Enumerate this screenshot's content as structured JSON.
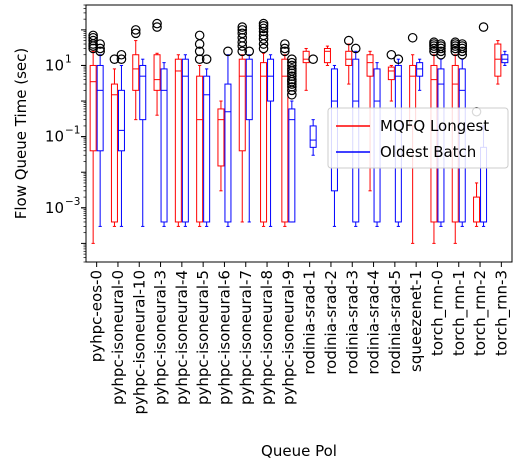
{
  "chart_data": {
    "type": "box",
    "title": "",
    "xlabel": "Queue Pol",
    "ylabel": "Flow Queue Time (sec)",
    "yscale": "log",
    "ylim": [
      3e-05,
      500
    ],
    "yticks": [
      {
        "value": 0.001,
        "base": "10",
        "exp": "−3"
      },
      {
        "value": 0.1,
        "base": "10",
        "exp": "−1"
      },
      {
        "value": 10,
        "base": "10",
        "exp": "1"
      }
    ],
    "grid": false,
    "legend_position": "center-right",
    "categories": [
      "pyhpc-eos-0",
      "pyhpc-isoneural-0",
      "pyhpc-isoneural-10",
      "pyhpc-isoneural-3",
      "pyhpc-isoneural-4",
      "pyhpc-isoneural-5",
      "pyhpc-isoneural-6",
      "pyhpc-isoneural-7",
      "pyhpc-isoneural-8",
      "pyhpc-isoneural-9",
      "rodinia-srad-1",
      "rodinia-srad-2",
      "rodinia-srad-3",
      "rodinia-srad-4",
      "rodinia-srad-5",
      "squeezenet-1",
      "torch_rnn-0",
      "torch_rnn-1",
      "torch_rnn-2",
      "torch_rnn-3"
    ],
    "series": [
      {
        "name": "MQFQ Longest",
        "color": "#ff0000",
        "boxes": [
          {
            "whislo": 0.0001,
            "q1": 0.04,
            "med": 3.5,
            "q3": 10,
            "whishi": 25,
            "fliers": [
              30,
              35,
              40,
              50,
              60,
              70
            ]
          },
          {
            "whislo": 0.0003,
            "q1": 0.0004,
            "med": 1.5,
            "q3": 3,
            "whishi": 8,
            "fliers": [
              15
            ]
          },
          {
            "whislo": 0.3,
            "q1": 2,
            "med": 8,
            "q3": 20,
            "whishi": 50,
            "fliers": [
              80,
              100
            ]
          },
          {
            "whislo": 0.4,
            "q1": 2,
            "med": 4,
            "q3": 20,
            "whishi": 22,
            "fliers": [
              120,
              150
            ]
          },
          {
            "whislo": 0.0003,
            "q1": 0.0004,
            "med": 7,
            "q3": 15,
            "whishi": 20,
            "fliers": []
          },
          {
            "whislo": 0.0003,
            "q1": 0.0004,
            "med": 0.3,
            "q3": 5,
            "whishi": 10,
            "fliers": [
              15,
              25,
              40,
              70
            ]
          },
          {
            "whislo": 0.003,
            "q1": 0.015,
            "med": 0.3,
            "q3": 0.6,
            "whishi": 1,
            "fliers": []
          },
          {
            "whislo": 0.0004,
            "q1": 0.04,
            "med": 5,
            "q3": 15,
            "whishi": 20,
            "fliers": [
              25,
              35,
              45,
              60,
              80,
              100,
              120
            ]
          },
          {
            "whislo": 0.0003,
            "q1": 0.0004,
            "med": 5,
            "q3": 12,
            "whishi": 22,
            "fliers": [
              30,
              40,
              55,
              70,
              90,
              110,
              130,
              150
            ]
          },
          {
            "whislo": 0.0003,
            "q1": 0.0004,
            "med": 5,
            "q3": 15,
            "whishi": 20,
            "fliers": [
              25,
              30,
              40
            ]
          },
          {
            "whislo": 2,
            "q1": 12,
            "med": 15,
            "q3": 25,
            "whishi": 30,
            "fliers": []
          },
          {
            "whislo": 10,
            "q1": 12,
            "med": 25,
            "q3": 30,
            "whishi": 35,
            "fliers": []
          },
          {
            "whislo": 3,
            "q1": 10,
            "med": 15,
            "q3": 25,
            "whishi": 40,
            "fliers": [
              50
            ]
          },
          {
            "whislo": 0.003,
            "q1": 5,
            "med": 12,
            "q3": 20,
            "whishi": 25,
            "fliers": []
          },
          {
            "whislo": 1,
            "q1": 4,
            "med": 7,
            "q3": 9,
            "whishi": 10,
            "fliers": [
              20
            ]
          },
          {
            "whislo": 0.0001,
            "q1": 0.2,
            "med": 5,
            "q3": 10,
            "whishi": 20,
            "fliers": [
              60
            ]
          },
          {
            "whislo": 0.0001,
            "q1": 0.0004,
            "med": 4,
            "q3": 10,
            "whishi": 20,
            "fliers": [
              25,
              30,
              35,
              40,
              45
            ]
          },
          {
            "whislo": 0.0001,
            "q1": 0.0004,
            "med": 3,
            "q3": 10,
            "whishi": 20,
            "fliers": [
              25,
              30,
              35,
              40,
              45
            ]
          },
          {
            "whislo": 0.0003,
            "q1": 0.0004,
            "med": 0.0004,
            "q3": 0.002,
            "whishi": 0.005,
            "fliers": [
              0.5
            ]
          },
          {
            "whislo": 3,
            "q1": 5,
            "med": 15,
            "q3": 40,
            "whishi": 50,
            "fliers": []
          }
        ]
      },
      {
        "name": "Oldest Batch",
        "color": "#0000ff",
        "boxes": [
          {
            "whislo": 0.0003,
            "q1": 0.04,
            "med": 2,
            "q3": 10,
            "whishi": 20,
            "fliers": [
              25,
              30,
              40
            ]
          },
          {
            "whislo": 0.0003,
            "q1": 0.04,
            "med": 0.15,
            "q3": 2,
            "whishi": 10,
            "fliers": [
              15,
              20
            ]
          },
          {
            "whislo": 0.0003,
            "q1": 0.3,
            "med": 5,
            "q3": 10,
            "whishi": 15,
            "fliers": []
          },
          {
            "whislo": 0.0003,
            "q1": 0.0004,
            "med": 2,
            "q3": 8,
            "whishi": 12,
            "fliers": []
          },
          {
            "whislo": 0.0003,
            "q1": 0.0004,
            "med": 5,
            "q3": 15,
            "whishi": 20,
            "fliers": []
          },
          {
            "whislo": 0.0003,
            "q1": 0.0004,
            "med": 1.5,
            "q3": 5,
            "whishi": 8,
            "fliers": [
              15
            ]
          },
          {
            "whislo": 0.0003,
            "q1": 0.0004,
            "med": 0.5,
            "q3": 3,
            "whishi": 20,
            "fliers": [
              25
            ]
          },
          {
            "whislo": 0.0004,
            "q1": 0.3,
            "med": 5,
            "q3": 15,
            "whishi": 20,
            "fliers": [
              25
            ]
          },
          {
            "whislo": 0.0003,
            "q1": 1,
            "med": 5,
            "q3": 15,
            "whishi": 20,
            "fliers": []
          },
          {
            "whislo": 0.0004,
            "q1": 0.0004,
            "med": 0.3,
            "q3": 0.6,
            "whishi": 1,
            "fliers": [
              1.5,
              2,
              2.5,
              3,
              3.5,
              4,
              5,
              6,
              7,
              8,
              10,
              12,
              15
            ]
          },
          {
            "whislo": 0.03,
            "q1": 0.05,
            "med": 0.08,
            "q3": 0.2,
            "whishi": 0.3,
            "fliers": [
              15
            ]
          },
          {
            "whislo": 0.0003,
            "q1": 0.003,
            "med": 1,
            "q3": 8,
            "whishi": 10,
            "fliers": []
          },
          {
            "whislo": 0.0003,
            "q1": 0.0004,
            "med": 1,
            "q3": 15,
            "whishi": 25,
            "fliers": [
              30
            ]
          },
          {
            "whislo": 0.0003,
            "q1": 0.0004,
            "med": 1,
            "q3": 8,
            "whishi": 12,
            "fliers": []
          },
          {
            "whislo": 0.0003,
            "q1": 0.0004,
            "med": 5,
            "q3": 10,
            "whishi": 15,
            "fliers": [
              15
            ]
          },
          {
            "whislo": 2,
            "q1": 5,
            "med": 8,
            "q3": 12,
            "whishi": 15,
            "fliers": []
          },
          {
            "whislo": 0.0003,
            "q1": 0.0004,
            "med": 3,
            "q3": 8,
            "whishi": 15,
            "fliers": [
              20,
              25,
              30,
              35,
              40
            ]
          },
          {
            "whislo": 0.0003,
            "q1": 0.0004,
            "med": 2,
            "q3": 8,
            "whishi": 15,
            "fliers": [
              20,
              25,
              30,
              35,
              40
            ]
          },
          {
            "whislo": 0.0003,
            "q1": 0.0004,
            "med": 0.0004,
            "q3": 0.05,
            "whishi": 0.2,
            "fliers": [
              120
            ]
          },
          {
            "whislo": 10,
            "q1": 12,
            "med": 15,
            "q3": 20,
            "whishi": 25,
            "fliers": []
          }
        ]
      }
    ]
  }
}
